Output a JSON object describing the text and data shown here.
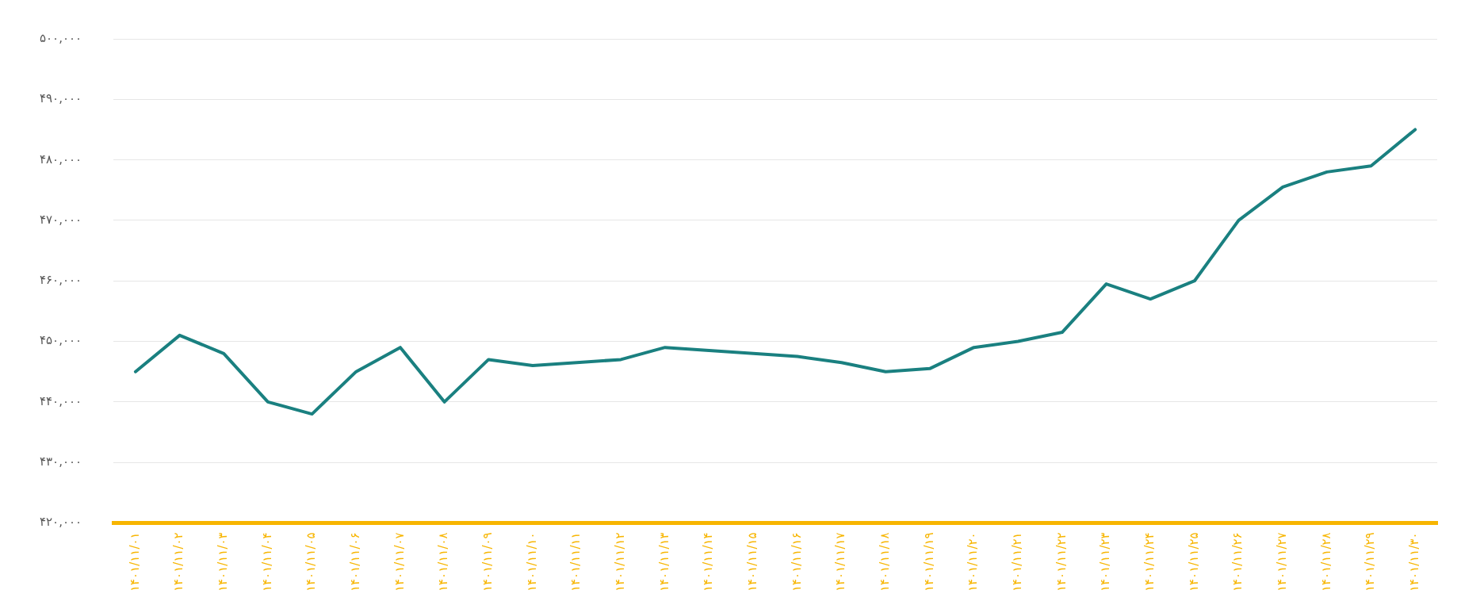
{
  "chart_data": {
    "type": "line",
    "categories": [
      "۱۴۰۱/۱۱/۰۱",
      "۱۴۰۱/۱۱/۰۲",
      "۱۴۰۱/۱۱/۰۳",
      "۱۴۰۱/۱۱/۰۴",
      "۱۴۰۱/۱۱/۰۵",
      "۱۴۰۱/۱۱/۰۶",
      "۱۴۰۱/۱۱/۰۷",
      "۱۴۰۱/۱۱/۰۸",
      "۱۴۰۱/۱۱/۰۹",
      "۱۴۰۱/۱۱/۱۰",
      "۱۴۰۱/۱۱/۱۱",
      "۱۴۰۱/۱۱/۱۲",
      "۱۴۰۱/۱۱/۱۳",
      "۱۴۰۱/۱۱/۱۴",
      "۱۴۰۱/۱۱/۱۵",
      "۱۴۰۱/۱۱/۱۶",
      "۱۴۰۱/۱۱/۱۷",
      "۱۴۰۱/۱۱/۱۸",
      "۱۴۰۱/۱۱/۱۹",
      "۱۴۰۱/۱۱/۲۰",
      "۱۴۰۱/۱۱/۲۱",
      "۱۴۰۱/۱۱/۲۲",
      "۱۴۰۱/۱۱/۲۳",
      "۱۴۰۱/۱۱/۲۴",
      "۱۴۰۱/۱۱/۲۵",
      "۱۴۰۱/۱۱/۲۶",
      "۱۴۰۱/۱۱/۲۷",
      "۱۴۰۱/۱۱/۲۸",
      "۱۴۰۱/۱۱/۲۹",
      "۱۴۰۱/۱۱/۳۰"
    ],
    "series": [
      {
        "color": "#1a8080",
        "values": [
          445000,
          451000,
          448000,
          440000,
          438000,
          445000,
          449000,
          440000,
          447000,
          446000,
          446500,
          447000,
          449000,
          448500,
          448000,
          447500,
          446500,
          445000,
          445500,
          449000,
          450000,
          451500,
          459500,
          457000,
          460000,
          470000,
          475500,
          478000,
          479000,
          485000
        ]
      }
    ],
    "ylim": [
      420000,
      500000
    ],
    "yticks": [
      {
        "value": 420000,
        "label": "۴۲۰,۰۰۰"
      },
      {
        "value": 430000,
        "label": "۴۳۰,۰۰۰"
      },
      {
        "value": 440000,
        "label": "۴۴۰,۰۰۰"
      },
      {
        "value": 450000,
        "label": "۴۵۰,۰۰۰"
      },
      {
        "value": 460000,
        "label": "۴۶۰,۰۰۰"
      },
      {
        "value": 470000,
        "label": "۴۷۰,۰۰۰"
      },
      {
        "value": 480000,
        "label": "۴۸۰,۰۰۰"
      },
      {
        "value": 490000,
        "label": "۴۹۰,۰۰۰"
      },
      {
        "value": 500000,
        "label": "۵۰۰,۰۰۰"
      }
    ],
    "grid": "y",
    "legend": false,
    "marker": "none",
    "line_style": "solid"
  }
}
